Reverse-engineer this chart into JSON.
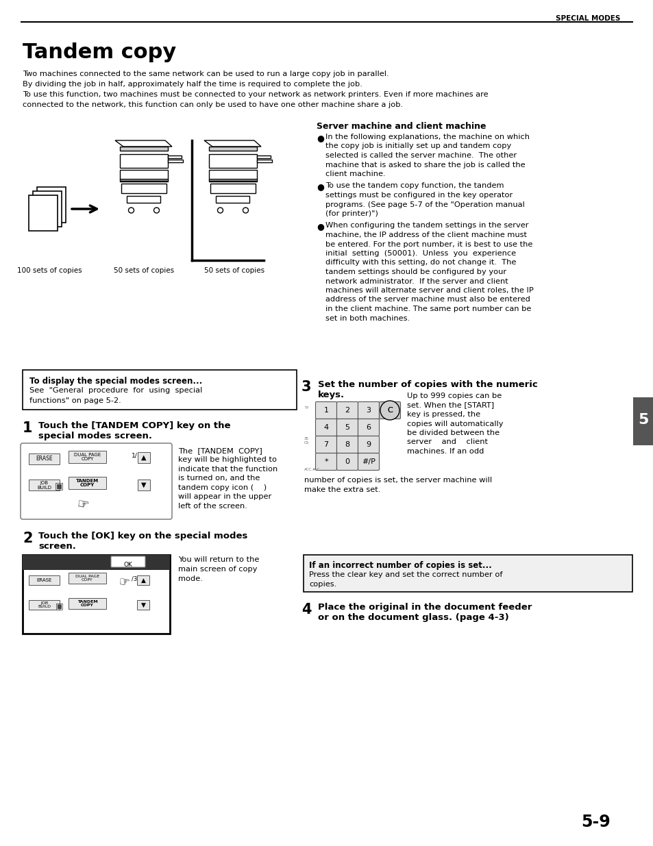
{
  "bg_color": "#ffffff",
  "page_width": 9.54,
  "page_height": 12.35,
  "dpi": 100,
  "header_text": "SPECIAL MODES",
  "title": "Tandem copy",
  "intro_line1": "Two machines connected to the same network can be used to run a large copy job in parallel.",
  "intro_line2": "By dividing the job in half, approximately half the time is required to complete the job.",
  "intro_line3": "To use this function, two machines must be connected to your network as network printers. Even if more machines are",
  "intro_line4": "connected to the network, this function can only be used to have one other machine share a job.",
  "rc_header": "Server machine and client machine",
  "rc_bullet1_lines": [
    "In the following explanations, the machine on which",
    "the copy job is initially set up and tandem copy",
    "selected is called the server machine.  The other",
    "machine that is asked to share the job is called the",
    "client machine."
  ],
  "rc_bullet2_lines": [
    "To use the tandem copy function, the tandem",
    "settings must be configured in the key operator",
    "programs. (See page 5-7 of the \"Operation manual",
    "(for printer)\")"
  ],
  "rc_bullet3_lines": [
    "When configuring the tandem settings in the server",
    "machine, the IP address of the client machine must",
    "be entered. For the port number, it is best to use the",
    "initial  setting  (50001).  Unless  you  experience",
    "difficulty with this setting, do not change it.  The",
    "tandem settings should be configured by your",
    "network administrator.  If the server and client",
    "machines will alternate server and client roles, the IP",
    "address of the server machine must also be entered",
    "in the client machine. The same port number can be",
    "set in both machines."
  ],
  "tab_label": "5",
  "caption1": "100 sets of copies",
  "caption2": "50 sets of copies",
  "caption3": "50 sets of copies",
  "box1_bold": "To display the special modes screen...",
  "box1_line1": "See  \"General  procedure  for  using  special",
  "box1_line2": "functions\" on page 5-2.",
  "s1_num": "1",
  "s1_bold1": "Touch the [TANDEM COPY] key on the",
  "s1_bold2": "special modes screen.",
  "s1_text_lines": [
    "The  [TANDEM  COPY]",
    "key will be highlighted to",
    "indicate that the function",
    "is turned on, and the",
    "tandem copy icon (    )",
    "will appear in the upper",
    "left of the screen."
  ],
  "s2_num": "2",
  "s2_bold1": "Touch the [OK] key on the special modes",
  "s2_bold2": "screen.",
  "s2_text_lines": [
    "You will return to the",
    "main screen of copy",
    "mode."
  ],
  "s3_num": "3",
  "s3_bold1": "Set the number of copies with the numeric",
  "s3_bold2": "keys.",
  "s3_text_lines": [
    "Up to 999 copies can be",
    "set. When the [START]",
    "key is pressed, the",
    "copies will automatically",
    "be divided between the",
    "server    and    client",
    "machines. If an odd"
  ],
  "s3_cont1": "number of copies is set, the server machine will",
  "s3_cont2": "make the extra set.",
  "box2_bold": "If an incorrect number of copies is set...",
  "box2_line1": "Press the clear key and set the correct number of",
  "box2_line2": "copies.",
  "s4_num": "4",
  "s4_bold1": "Place the original in the document feeder",
  "s4_bold2": "or on the document glass. (page 4-3)",
  "page_num": "5-9"
}
